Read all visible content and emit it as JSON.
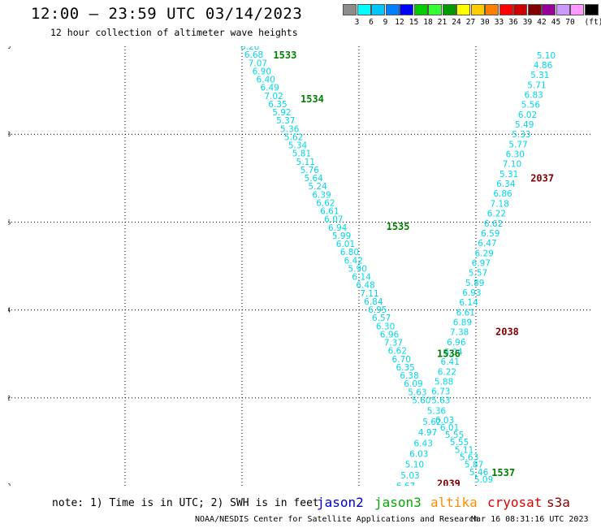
{
  "header": {
    "title": "12:00 — 23:59 UTC 03/14/2023",
    "subtitle": "12 hour collection of altimeter wave heights"
  },
  "legend": {
    "unit": "(ft)",
    "bins": [
      {
        "label": "",
        "color": "#8c8c8c"
      },
      {
        "label": "3",
        "color": "#00ffff"
      },
      {
        "label": "6",
        "color": "#00c8ff"
      },
      {
        "label": "9",
        "color": "#0080ff"
      },
      {
        "label": "12",
        "color": "#0000ff"
      },
      {
        "label": "15",
        "color": "#00cc00"
      },
      {
        "label": "18",
        "color": "#33ff33"
      },
      {
        "label": "21",
        "color": "#009900"
      },
      {
        "label": "24",
        "color": "#ffff00"
      },
      {
        "label": "27",
        "color": "#ffcc00"
      },
      {
        "label": "30",
        "color": "#ff8000"
      },
      {
        "label": "33",
        "color": "#ff0000"
      },
      {
        "label": "36",
        "color": "#cc0000"
      },
      {
        "label": "39",
        "color": "#800000"
      },
      {
        "label": "42",
        "color": "#990099"
      },
      {
        "label": "45",
        "color": "#cc99ff"
      },
      {
        "label": "70",
        "color": "#ff99ff"
      },
      {
        "label": "",
        "color": "#000000"
      }
    ]
  },
  "map": {
    "lon_range": [
      -165,
      -150
    ],
    "lat_range": [
      30,
      40
    ],
    "lon_ticks": [
      "-165",
      "-162",
      "-159",
      "-156",
      "-153",
      "-150"
    ],
    "lon_tick_values": [
      -165,
      -162,
      -159,
      -156,
      -153,
      -150
    ],
    "lat_ticks": [
      "30",
      "32",
      "34",
      "36",
      "38",
      "40"
    ],
    "lat_tick_values": [
      30,
      32,
      34,
      36,
      38,
      40
    ],
    "value_color": "#00d8e6",
    "track_a": {
      "lon_start": -158.8,
      "lat_start": 40.0,
      "lon_end": -154.4,
      "lat_end": 31.95,
      "values": [
        "6.26",
        "6.68",
        "7.07",
        "6.90",
        "6.40",
        "6.49",
        "7.02",
        "6.35",
        "5.92",
        "5.37",
        "5.36",
        "5.62",
        "5.34",
        "5.81",
        "5.11",
        "5.76",
        "5.64",
        "5.24",
        "6.39",
        "6.62",
        "6.61",
        "6.07",
        "6.94",
        "5.99",
        "6.01",
        "6.80",
        "6.42",
        "5.90",
        "6.14",
        "6.48",
        "7.11",
        "6.84",
        "6.95",
        "6.57",
        "6.30",
        "6.96",
        "7.37",
        "6.62",
        "6.70",
        "6.35",
        "6.38",
        "6.09",
        "5.63",
        "5.60"
      ]
    },
    "track_b": {
      "lon_start": -153.9,
      "lat_start": 31.95,
      "lon_end": -154.8,
      "lat_end": 30.0,
      "values": [
        "5.63",
        "5.36",
        "5.62",
        "4.97",
        "6.43",
        "6.03",
        "5.10",
        "5.03",
        "6.67"
      ]
    },
    "track_c": {
      "lon_start": -151.2,
      "lat_start": 39.8,
      "lon_end": -153.9,
      "lat_end": 32.15,
      "values": [
        "5.10",
        "4.86",
        "5.31",
        "5.71",
        "6.83",
        "5.56",
        "6.02",
        "5.49",
        "5.33",
        "5.77",
        "6.30",
        "7.10",
        "5.31",
        "6.34",
        "6.86",
        "7.18",
        "6.22",
        "6.62",
        "6.59",
        "6.47",
        "6.29",
        "6.97",
        "5.57",
        "5.89",
        "6.93",
        "6.14",
        "6.61",
        "6.89",
        "7.38",
        "6.96",
        "6.04",
        "6.41",
        "6.22",
        "5.88",
        "6.73"
      ]
    },
    "track_d": {
      "lon_start": -153.8,
      "lat_start": 31.5,
      "lon_end": -152.8,
      "lat_end": 30.15,
      "values": [
        "6.03",
        "6.01",
        "5.55",
        "5.55",
        "5.11",
        "5.63",
        "5.87",
        "5.46",
        "5.09"
      ]
    },
    "time_labels": [
      {
        "text": "1533",
        "lon": -158.2,
        "lat": 39.8,
        "color": "#008000"
      },
      {
        "text": "1534",
        "lon": -157.5,
        "lat": 38.8,
        "color": "#008000"
      },
      {
        "text": "1535",
        "lon": -155.3,
        "lat": 35.9,
        "color": "#008000"
      },
      {
        "text": "1536",
        "lon": -154.0,
        "lat": 33.0,
        "color": "#008000"
      },
      {
        "text": "1537",
        "lon": -152.6,
        "lat": 30.3,
        "color": "#008000"
      },
      {
        "text": "2037",
        "lon": -151.6,
        "lat": 37.0,
        "color": "#800000"
      },
      {
        "text": "2038",
        "lon": -152.5,
        "lat": 33.5,
        "color": "#800000"
      },
      {
        "text": "2039",
        "lon": -154.0,
        "lat": 30.05,
        "color": "#800000"
      }
    ]
  },
  "footer": {
    "note": "note: 1) Time is in UTC; 2) SWH is in feet",
    "satellites": [
      {
        "name": "jason2",
        "color": "#0000cc"
      },
      {
        "name": "jason3",
        "color": "#00aa00"
      },
      {
        "name": "altika",
        "color": "#ff8c00"
      },
      {
        "name": "cryosat",
        "color": "#dd0000"
      },
      {
        "name": "s3a",
        "color": "#880000"
      }
    ],
    "credit": "NOAA/NESDIS Center for Satellite Applications and Research",
    "timestamp": "Mar 16 08:31:16 UTC 2023"
  }
}
